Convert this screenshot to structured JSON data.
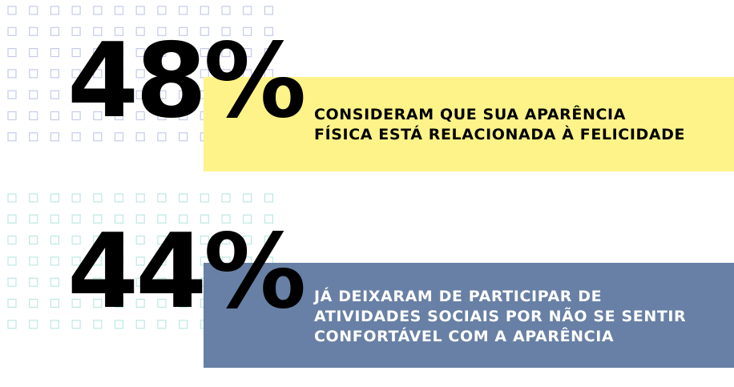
{
  "colors": {
    "yellow_band": "#fef389",
    "blue_band": "#6880a5",
    "top_grid": "#c5cbea",
    "bottom_grid": "#bde8e4",
    "number_text": "#000000"
  },
  "stats": [
    {
      "value": "48%",
      "lines": [
        "CONSIDERAM QUE SUA APARÊNCIA",
        "FÍSICA ESTÁ RELACIONADA À FELICIDADE"
      ]
    },
    {
      "value": "44%",
      "lines": [
        "JÁ DEIXARAM DE PARTICIPAR DE",
        "ATIVIDADES SOCIAIS POR NÃO SE SENTIR",
        "CONFORTÁVEL COM A APARÊNCIA"
      ]
    }
  ]
}
